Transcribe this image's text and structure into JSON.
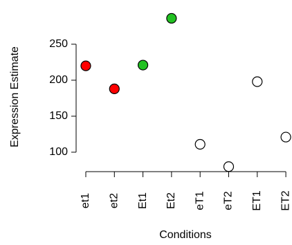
{
  "chart_data": {
    "type": "scatter",
    "x_label": "Conditions",
    "y_label": "Expression Estimate",
    "categories": [
      "et1",
      "et2",
      "Et1",
      "Et2",
      "eT1",
      "eT2",
      "ET1",
      "ET2"
    ],
    "values": [
      220,
      188,
      221,
      286,
      111,
      80,
      198,
      121
    ],
    "colors": [
      "#ff0000",
      "#ff0000",
      "#22c122",
      "#22c122",
      "#ffffff",
      "#ffffff",
      "#ffffff",
      "#ffffff"
    ],
    "ylim": [
      73,
      297
    ],
    "yticks": [
      100,
      150,
      200,
      250
    ]
  }
}
